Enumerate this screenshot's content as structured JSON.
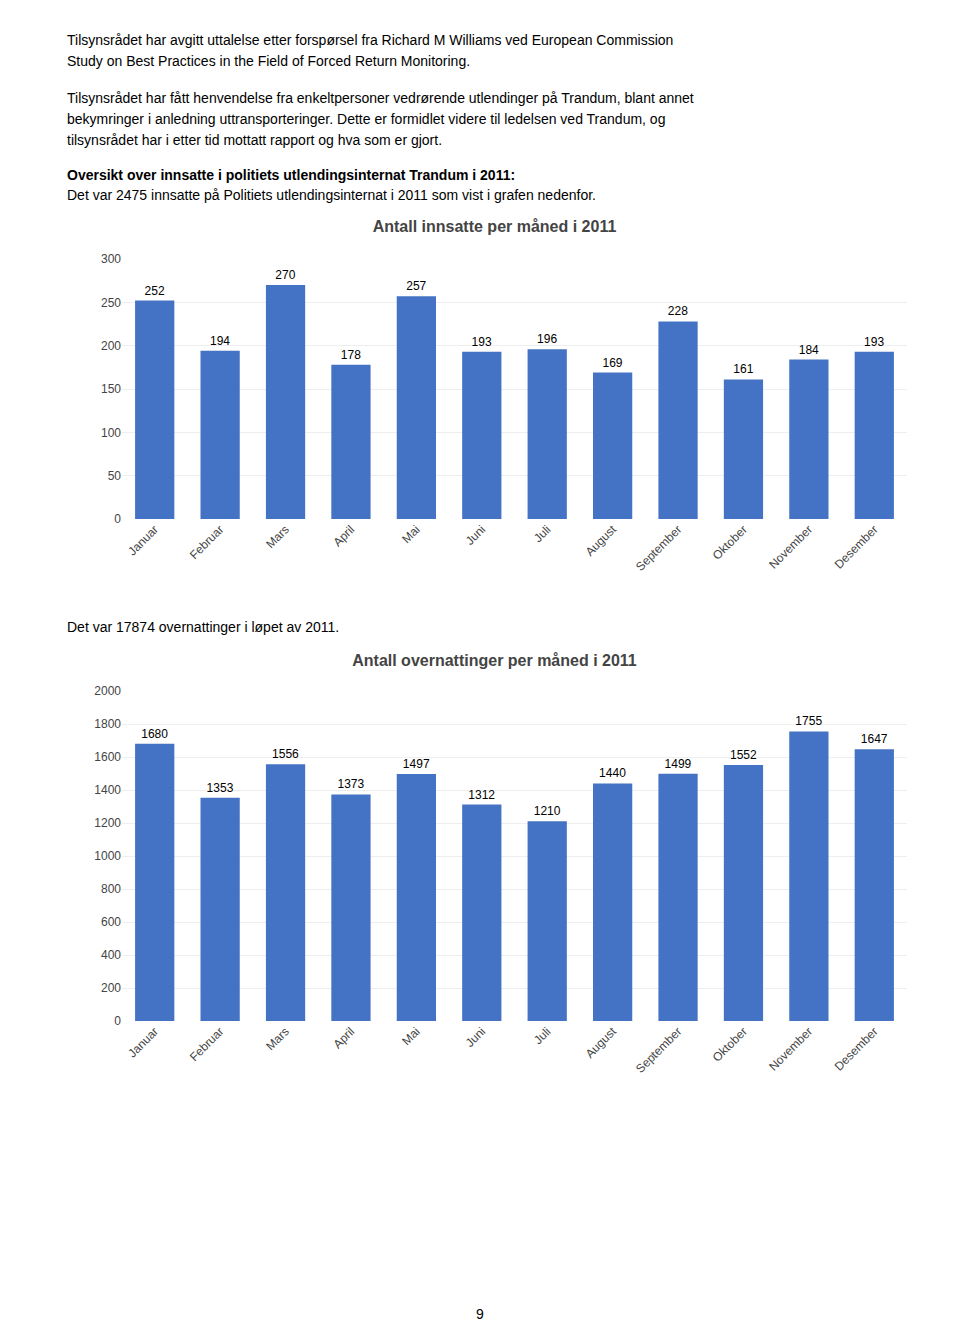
{
  "intro": [
    "Tilsynsrådet har avgitt uttalelse etter forspørsel fra Richard M Williams ved European Commission\nStudy on Best Practices in the Field of Forced Return Monitoring.",
    "Tilsynsrådet har fått henvendelse fra enkeltpersoner vedrørende utlendinger på Trandum, blant annet\nbekymringer i anledning uttransporteringer. Dette er formidlet videre til ledelsen ved Trandum, og\ntilsynsrådet har i etter tid mottatt rapport og hva som er gjort."
  ],
  "heading": "Oversikt over innsatte i politiets utlendingsinternat Trandum i 2011:",
  "lead": "Det var 2475 innsatte på Politiets utlendingsinternat i 2011 som vist i grafen nedenfor.",
  "between": "Det var 17874 overnattinger i løpet av 2011.",
  "page_number": "9",
  "chart_data": [
    {
      "type": "bar",
      "title": "Antall innsatte per måned i 2011",
      "categories": [
        "Januar",
        "Februar",
        "Mars",
        "April",
        "Mai",
        "Juni",
        "Juli",
        "August",
        "September",
        "Oktober",
        "November",
        "Desember"
      ],
      "values": [
        252,
        194,
        270,
        178,
        257,
        193,
        196,
        169,
        228,
        161,
        184,
        193
      ],
      "color": "#4472C4",
      "ylim": [
        0,
        300
      ],
      "yticks": [
        0,
        50,
        100,
        150,
        200,
        250,
        300
      ],
      "grid": true,
      "data_labels": true
    },
    {
      "type": "bar",
      "title": "Antall overnattinger per måned i 2011",
      "categories": [
        "Januar",
        "Februar",
        "Mars",
        "April",
        "Mai",
        "Juni",
        "Juli",
        "August",
        "September",
        "Oktober",
        "November",
        "Desember"
      ],
      "values": [
        1680,
        1353,
        1556,
        1373,
        1497,
        1312,
        1210,
        1440,
        1499,
        1552,
        1755,
        1647
      ],
      "color": "#4472C4",
      "ylim": [
        0,
        2000
      ],
      "yticks": [
        0,
        200,
        400,
        600,
        800,
        1000,
        1200,
        1400,
        1600,
        1800,
        2000
      ],
      "grid": true,
      "data_labels": true
    }
  ]
}
